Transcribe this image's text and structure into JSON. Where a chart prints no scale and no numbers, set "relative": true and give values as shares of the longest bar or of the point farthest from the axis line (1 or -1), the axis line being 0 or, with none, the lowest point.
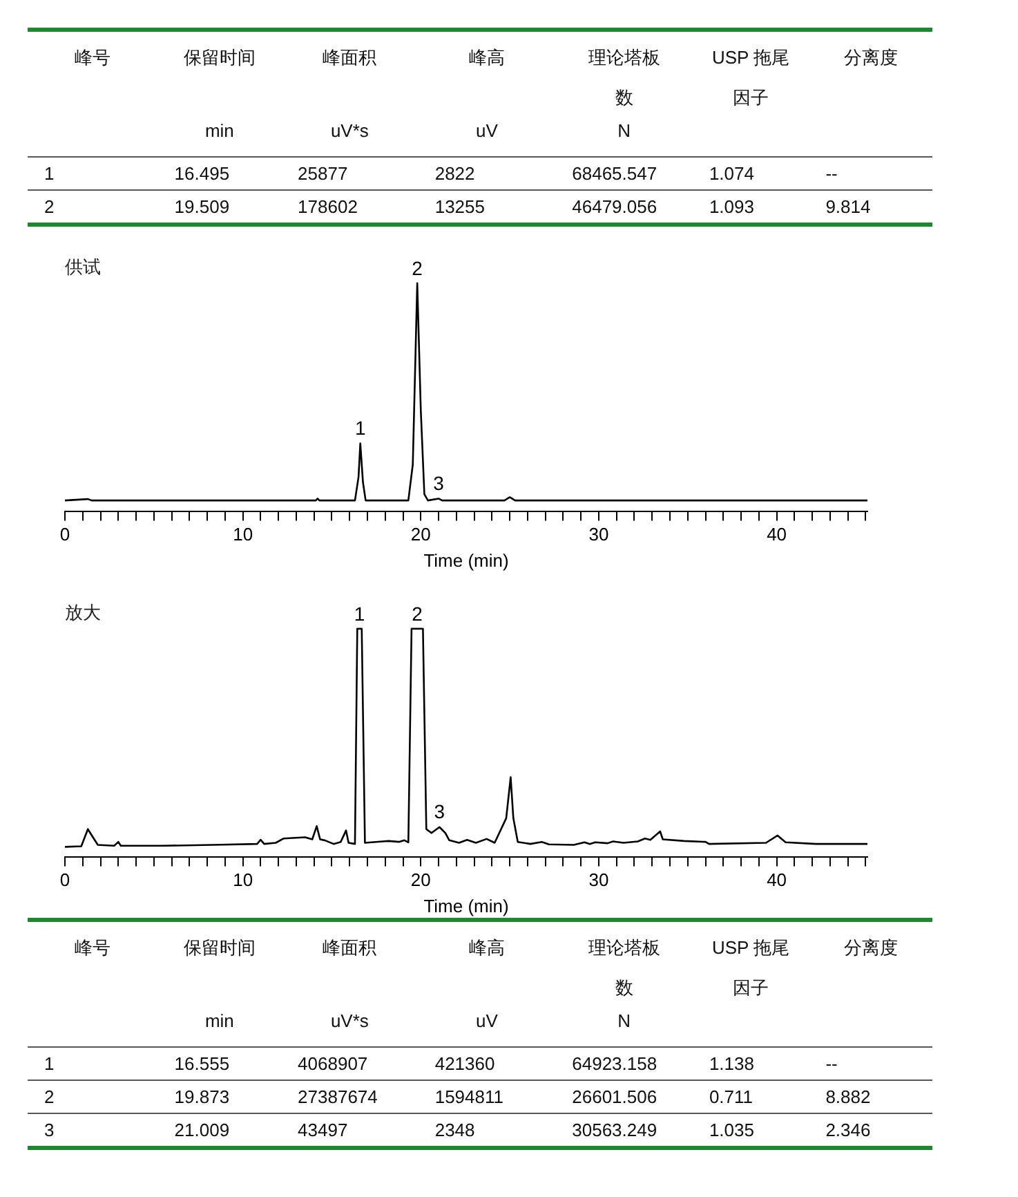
{
  "chart_data": [
    {
      "type": "other",
      "categories": [
        "峰号",
        "保留时间",
        "峰面积",
        "峰高",
        "理论塔板数",
        "USP 拖尾因子",
        "分离度"
      ],
      "cell_labels": [
        [
          null,
          "min",
          "uV*s",
          "uV",
          "N",
          null,
          null
        ],
        [
          "1",
          "16.495",
          "25877",
          "2822",
          "68465.547",
          "1.074",
          "--"
        ],
        [
          "2",
          "19.509",
          "178602",
          "13255",
          "46479.056",
          "1.093",
          "9.814"
        ]
      ]
    },
    {
      "type": "line",
      "title": "供试",
      "xlabel": "Time (min)",
      "relative": true,
      "grid": false,
      "legend": false,
      "marker": "none",
      "line_style": "solid",
      "xlim": [
        0,
        45.1
      ],
      "xticks": [
        0,
        {
          "value": 1,
          "label": null
        },
        {
          "value": 2,
          "label": null
        },
        {
          "value": 3,
          "label": null
        },
        {
          "value": 4,
          "label": null
        },
        {
          "value": 5,
          "label": null
        },
        {
          "value": 6,
          "label": null
        },
        {
          "value": 7,
          "label": null
        },
        {
          "value": 8,
          "label": null
        },
        {
          "value": 9,
          "label": null
        },
        10,
        {
          "value": 11,
          "label": null
        },
        {
          "value": 12,
          "label": null
        },
        {
          "value": 13,
          "label": null
        },
        {
          "value": 14,
          "label": null
        },
        {
          "value": 15,
          "label": null
        },
        {
          "value": 16,
          "label": null
        },
        {
          "value": 17,
          "label": null
        },
        {
          "value": 18,
          "label": null
        },
        {
          "value": 19,
          "label": null
        },
        20,
        {
          "value": 21,
          "label": null
        },
        {
          "value": 22,
          "label": null
        },
        {
          "value": 23,
          "label": null
        },
        {
          "value": 24,
          "label": null
        },
        {
          "value": 25,
          "label": null
        },
        {
          "value": 26,
          "label": null
        },
        {
          "value": 27,
          "label": null
        },
        {
          "value": 28,
          "label": null
        },
        {
          "value": 29,
          "label": null
        },
        30,
        {
          "value": 31,
          "label": null
        },
        {
          "value": 32,
          "label": null
        },
        {
          "value": 33,
          "label": null
        },
        {
          "value": 34,
          "label": null
        },
        {
          "value": 35,
          "label": null
        },
        {
          "value": 36,
          "label": null
        },
        {
          "value": 37,
          "label": null
        },
        {
          "value": 38,
          "label": null
        },
        {
          "value": 39,
          "label": null
        },
        40,
        {
          "value": 41,
          "label": null
        },
        {
          "value": 42,
          "label": null
        },
        {
          "value": 43,
          "label": null
        },
        {
          "value": 44,
          "label": null
        },
        {
          "value": 45,
          "label": null
        }
      ],
      "series": [
        {
          "color": "#000000",
          "x": [
            0,
            1.3,
            1.5,
            14.1,
            14.2,
            14.3,
            16.3,
            16.5,
            16.6,
            16.75,
            16.9,
            19.3,
            19.55,
            19.8,
            20.0,
            20.2,
            20.4,
            21.0,
            21.2,
            24.7,
            25.0,
            25.3,
            45.1
          ],
          "values": [
            0.047,
            0.053,
            0.047,
            0.047,
            0.055,
            0.047,
            0.047,
            0.15,
            0.297,
            0.126,
            0.047,
            0.047,
            0.205,
            1,
            0.442,
            0.074,
            0.047,
            0.055,
            0.047,
            0.047,
            0.061,
            0.047,
            0.047
          ]
        }
      ],
      "annotations": [
        {
          "text": "1",
          "x": 16.6,
          "y": 0.297
        },
        {
          "text": "2",
          "x": 19.8,
          "y": 1
        },
        {
          "text": "3",
          "x": 21.0,
          "y": 0.055
        }
      ]
    },
    {
      "type": "line",
      "title": "放大",
      "xlabel": "Time (min)",
      "relative": true,
      "grid": false,
      "legend": false,
      "marker": "none",
      "line_style": "solid",
      "xlim": [
        0,
        45.1
      ],
      "xticks": [
        0,
        {
          "value": 1,
          "label": null
        },
        {
          "value": 2,
          "label": null
        },
        {
          "value": 3,
          "label": null
        },
        {
          "value": 4,
          "label": null
        },
        {
          "value": 5,
          "label": null
        },
        {
          "value": 6,
          "label": null
        },
        {
          "value": 7,
          "label": null
        },
        {
          "value": 8,
          "label": null
        },
        {
          "value": 9,
          "label": null
        },
        10,
        {
          "value": 11,
          "label": null
        },
        {
          "value": 12,
          "label": null
        },
        {
          "value": 13,
          "label": null
        },
        {
          "value": 14,
          "label": null
        },
        {
          "value": 15,
          "label": null
        },
        {
          "value": 16,
          "label": null
        },
        {
          "value": 17,
          "label": null
        },
        {
          "value": 18,
          "label": null
        },
        {
          "value": 19,
          "label": null
        },
        20,
        {
          "value": 21,
          "label": null
        },
        {
          "value": 22,
          "label": null
        },
        {
          "value": 23,
          "label": null
        },
        {
          "value": 24,
          "label": null
        },
        {
          "value": 25,
          "label": null
        },
        {
          "value": 26,
          "label": null
        },
        {
          "value": 27,
          "label": null
        },
        {
          "value": 28,
          "label": null
        },
        {
          "value": 29,
          "label": null
        },
        30,
        {
          "value": 31,
          "label": null
        },
        {
          "value": 32,
          "label": null
        },
        {
          "value": 33,
          "label": null
        },
        {
          "value": 34,
          "label": null
        },
        {
          "value": 35,
          "label": null
        },
        {
          "value": 36,
          "label": null
        },
        {
          "value": 37,
          "label": null
        },
        {
          "value": 38,
          "label": null
        },
        {
          "value": 39,
          "label": null
        },
        40,
        {
          "value": 41,
          "label": null
        },
        {
          "value": 42,
          "label": null
        },
        {
          "value": 43,
          "label": null
        },
        {
          "value": 44,
          "label": null
        },
        {
          "value": 45,
          "label": null
        }
      ],
      "series": [
        {
          "color": "#000000",
          "x": [
            0,
            0.92,
            1.29,
            1.6,
            1.85,
            2.77,
            3.0,
            3.14,
            5.5,
            8.3,
            10.8,
            11.0,
            11.2,
            11.85,
            12.3,
            13.5,
            13.9,
            14.15,
            14.34,
            14.6,
            15.1,
            15.5,
            15.8,
            15.94,
            16.3,
            16.43,
            16.68,
            16.86,
            17.85,
            18.2,
            18.77,
            19.08,
            19.3,
            19.48,
            20.12,
            20.31,
            20.6,
            21.05,
            21.38,
            21.6,
            22.15,
            22.6,
            23.1,
            23.7,
            24.15,
            24.8,
            25.05,
            25.2,
            25.45,
            26.15,
            26.8,
            27.2,
            28.6,
            29.2,
            29.5,
            29.8,
            30.5,
            30.8,
            31.4,
            32.2,
            32.6,
            32.9,
            33.45,
            33.6,
            34.8,
            36.0,
            36.2,
            39.4,
            40.05,
            40.5,
            42.2,
            45.1
          ],
          "values": [
            0.043,
            0.046,
            0.121,
            0.082,
            0.052,
            0.048,
            0.065,
            0.048,
            0.048,
            0.052,
            0.056,
            0.074,
            0.056,
            0.061,
            0.08,
            0.085,
            0.076,
            0.134,
            0.076,
            0.072,
            0.056,
            0.065,
            0.115,
            0.061,
            0.056,
            1,
            1,
            0.061,
            0.067,
            0.069,
            0.065,
            0.072,
            0.063,
            1,
            1,
            0.121,
            0.104,
            0.13,
            0.104,
            0.072,
            0.061,
            0.074,
            0.061,
            0.078,
            0.061,
            0.169,
            0.349,
            0.169,
            0.065,
            0.056,
            0.065,
            0.054,
            0.052,
            0.063,
            0.056,
            0.063,
            0.059,
            0.067,
            0.061,
            0.067,
            0.08,
            0.074,
            0.111,
            0.076,
            0.069,
            0.065,
            0.056,
            0.061,
            0.093,
            0.063,
            0.056,
            0.056
          ]
        }
      ],
      "annotations": [
        {
          "text": "1",
          "x": 16.55,
          "y": 1
        },
        {
          "text": "2",
          "x": 19.8,
          "y": 1
        },
        {
          "text": "3",
          "x": 21.05,
          "y": 0.13
        }
      ]
    },
    {
      "type": "other",
      "categories": [
        "峰号",
        "保留时间",
        "峰面积",
        "峰高",
        "理论塔板数",
        "USP 拖尾因子",
        "分离度"
      ],
      "cell_labels": [
        [
          null,
          "min",
          "uV*s",
          "uV",
          "N",
          null,
          null
        ],
        [
          "1",
          "16.555",
          "4068907",
          "421360",
          "64923.158",
          "1.138",
          "--"
        ],
        [
          "2",
          "19.873",
          "27387674",
          "1594811",
          "26601.506",
          "0.711",
          "8.882"
        ],
        [
          "3",
          "21.009",
          "43497",
          "2348",
          "30563.249",
          "1.035",
          "2.346"
        ]
      ]
    }
  ]
}
